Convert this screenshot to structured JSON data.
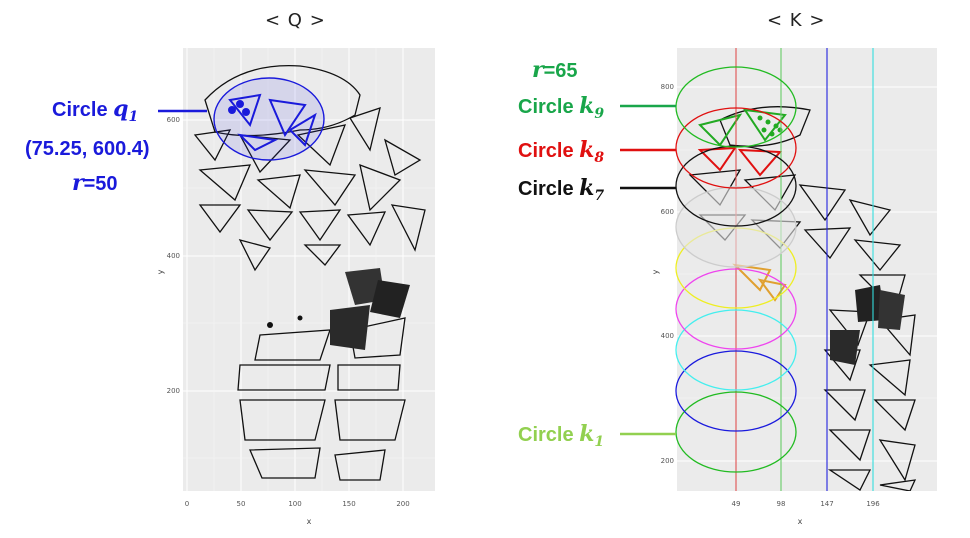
{
  "panels": {
    "left_title": "< Q >",
    "right_title": "< K >"
  },
  "left_annotation": {
    "circle_prefix": "Circle ",
    "circle_var": "q",
    "circle_sub": "1",
    "center": "(75.25, 600.4)",
    "r_var": "r",
    "r_value": "=50",
    "color": "#1a1adb"
  },
  "right_annotations": {
    "r_var": "r",
    "r_value": "=65",
    "r_color": "#19a64a",
    "circles": [
      {
        "prefix": "Circle ",
        "var": "k",
        "sub": "9",
        "color": "#19a64a"
      },
      {
        "prefix": "Circle ",
        "var": "k",
        "sub": "8",
        "color": "#e01010"
      },
      {
        "prefix": "Circle ",
        "var": "k",
        "sub": "7",
        "color": "#111111"
      },
      {
        "prefix": "Circle ",
        "var": "k",
        "sub": "1",
        "color": "#92d050"
      }
    ]
  },
  "left_axes": {
    "xlabel": "x",
    "ylabel": "y",
    "xticks": [
      "0",
      "50",
      "100",
      "150",
      "200"
    ],
    "yticks": [
      "600",
      "400",
      "200"
    ]
  },
  "right_axes": {
    "xlabel": "x",
    "ylabel": "y",
    "xticks": [
      "49",
      "98",
      "147",
      "196"
    ],
    "yticks": [
      "800",
      "600",
      "400",
      "200"
    ]
  },
  "vertical_line_colors": [
    "#e05050",
    "#66cc66",
    "#2222dd",
    "#33dddd"
  ],
  "circle_colors": [
    "#22bb22",
    "#1a1add",
    "#44eeee",
    "#ee44ee",
    "#eeee22",
    "#cccccc",
    "#111111",
    "#e01010",
    "#22bb22"
  ]
}
